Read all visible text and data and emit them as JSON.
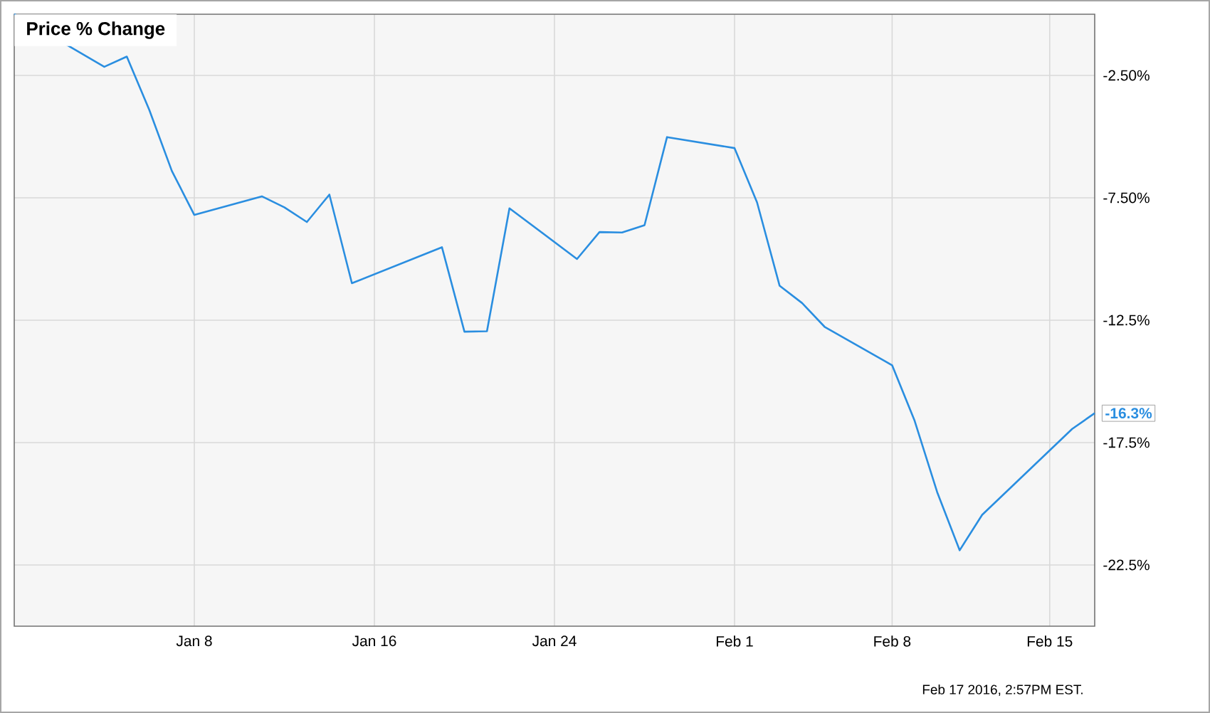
{
  "chart_data": {
    "type": "line",
    "title": "Price % Change",
    "x": [
      "2015-12-31",
      "2016-01-04",
      "2016-01-05",
      "2016-01-06",
      "2016-01-07",
      "2016-01-08",
      "2016-01-11",
      "2016-01-12",
      "2016-01-13",
      "2016-01-14",
      "2016-01-15",
      "2016-01-19",
      "2016-01-20",
      "2016-01-21",
      "2016-01-22",
      "2016-01-25",
      "2016-01-26",
      "2016-01-27",
      "2016-01-28",
      "2016-01-29",
      "2016-02-01",
      "2016-02-02",
      "2016-02-03",
      "2016-02-04",
      "2016-02-05",
      "2016-02-08",
      "2016-02-09",
      "2016-02-10",
      "2016-02-11",
      "2016-02-12",
      "2016-02-16",
      "2016-02-17"
    ],
    "series": [
      {
        "color": "#2a8ee0",
        "values": [
          0.0,
          -2.15,
          -1.73,
          -3.91,
          -6.4,
          -8.2,
          -7.44,
          -7.89,
          -8.49,
          -7.37,
          -10.99,
          -9.52,
          -12.97,
          -12.95,
          -7.93,
          -10.0,
          -8.9,
          -8.92,
          -8.62,
          -5.02,
          -5.47,
          -7.69,
          -11.09,
          -11.8,
          -12.77,
          -14.34,
          -16.61,
          -19.52,
          -21.9,
          -20.45,
          -16.94,
          -16.3
        ],
        "value_labels": [
          null,
          null,
          null,
          null,
          null,
          null,
          null,
          null,
          null,
          null,
          null,
          null,
          null,
          null,
          null,
          null,
          null,
          null,
          null,
          null,
          null,
          null,
          null,
          null,
          null,
          null,
          null,
          null,
          null,
          null,
          null,
          "-16.3%"
        ]
      }
    ],
    "xlim": [
      "2015-12-31",
      "2016-02-17"
    ],
    "xticks": [
      {
        "value": "2016-01-08",
        "label": "Jan 8"
      },
      {
        "value": "2016-01-16",
        "label": "Jan 16"
      },
      {
        "value": "2016-01-24",
        "label": "Jan 24"
      },
      {
        "value": "2016-02-01",
        "label": "Feb 1"
      },
      {
        "value": "2016-02-08",
        "label": "Feb 8"
      },
      {
        "value": "2016-02-15",
        "label": "Feb 15"
      }
    ],
    "ylim": [
      -25,
      0
    ],
    "yticks": [
      {
        "value": -2.5,
        "label": "-2.50%"
      },
      {
        "value": -7.5,
        "label": "-7.50%"
      },
      {
        "value": -12.5,
        "label": "-12.5%"
      },
      {
        "value": -17.5,
        "label": "-17.5%"
      },
      {
        "value": -22.5,
        "label": "-22.5%"
      }
    ],
    "grid": true,
    "annotations": [
      "Feb 17 2016, 2:57PM EST."
    ]
  }
}
